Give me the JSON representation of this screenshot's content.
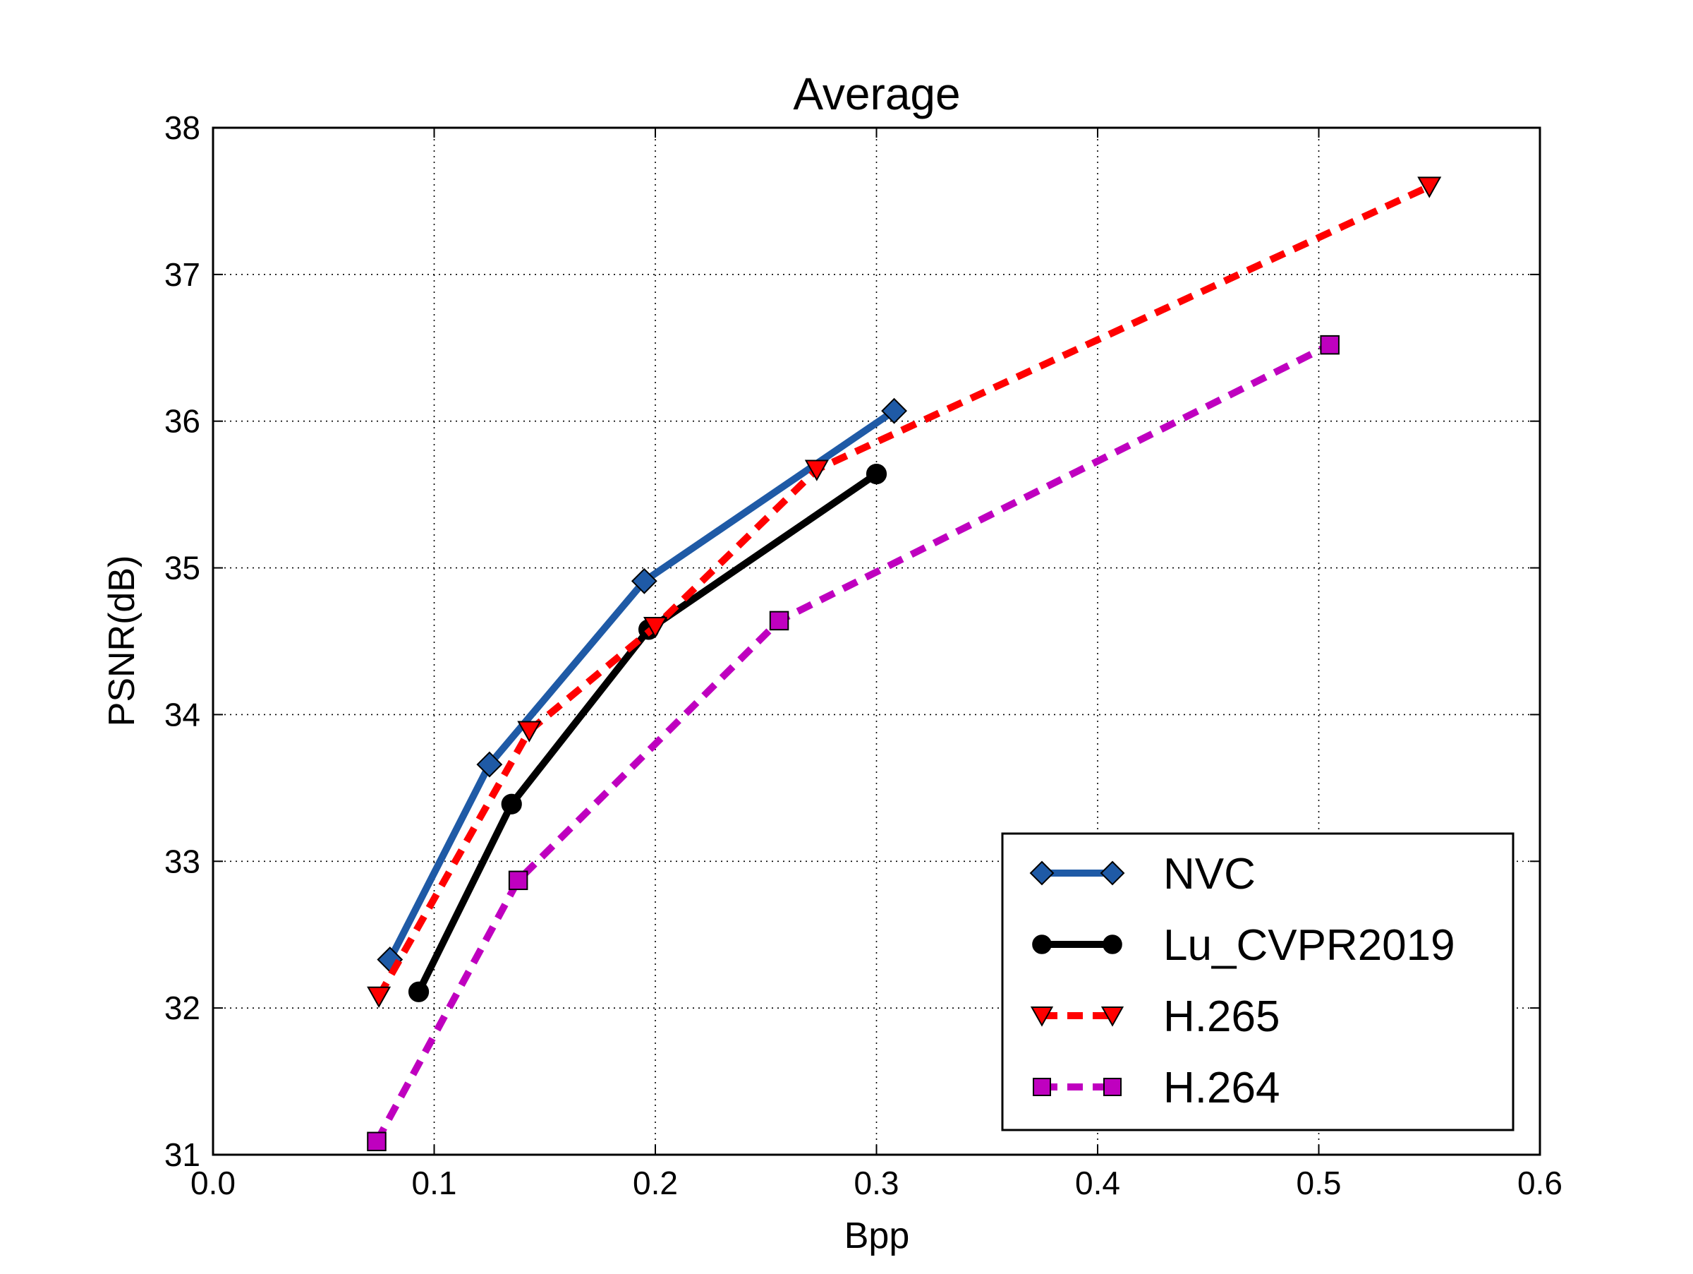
{
  "chart_data": {
    "type": "line",
    "title": "Average",
    "xlabel": "Bpp",
    "ylabel": "PSNR(dB)",
    "xlim": [
      0.0,
      0.6
    ],
    "ylim": [
      31,
      38
    ],
    "xticks": [
      "0.0",
      "0.1",
      "0.2",
      "0.3",
      "0.4",
      "0.5",
      "0.6"
    ],
    "yticks": [
      "31",
      "32",
      "33",
      "34",
      "35",
      "36",
      "37",
      "38"
    ],
    "grid": true,
    "legend_position": "lower-right",
    "series": [
      {
        "name": "NVC",
        "color": "#1f5aa6",
        "line_style": "solid",
        "marker": "diamond",
        "x": [
          0.08,
          0.125,
          0.195,
          0.308
        ],
        "y": [
          32.33,
          33.66,
          34.91,
          36.07
        ]
      },
      {
        "name": "Lu_CVPR2019",
        "color": "#000000",
        "line_style": "solid",
        "marker": "circle",
        "x": [
          0.093,
          0.135,
          0.197,
          0.3
        ],
        "y": [
          32.11,
          33.39,
          34.58,
          35.64
        ]
      },
      {
        "name": "H.265",
        "color": "#ff0000",
        "line_style": "dashed",
        "marker": "triangle-down",
        "x": [
          0.075,
          0.143,
          0.2,
          0.273,
          0.55
        ],
        "y": [
          32.08,
          33.89,
          34.6,
          35.67,
          37.6
        ]
      },
      {
        "name": "H.264",
        "color": "#bf00bf",
        "line_style": "dashed",
        "marker": "square",
        "x": [
          0.074,
          0.138,
          0.256,
          0.505
        ],
        "y": [
          31.09,
          32.87,
          34.64,
          36.52
        ]
      }
    ]
  }
}
